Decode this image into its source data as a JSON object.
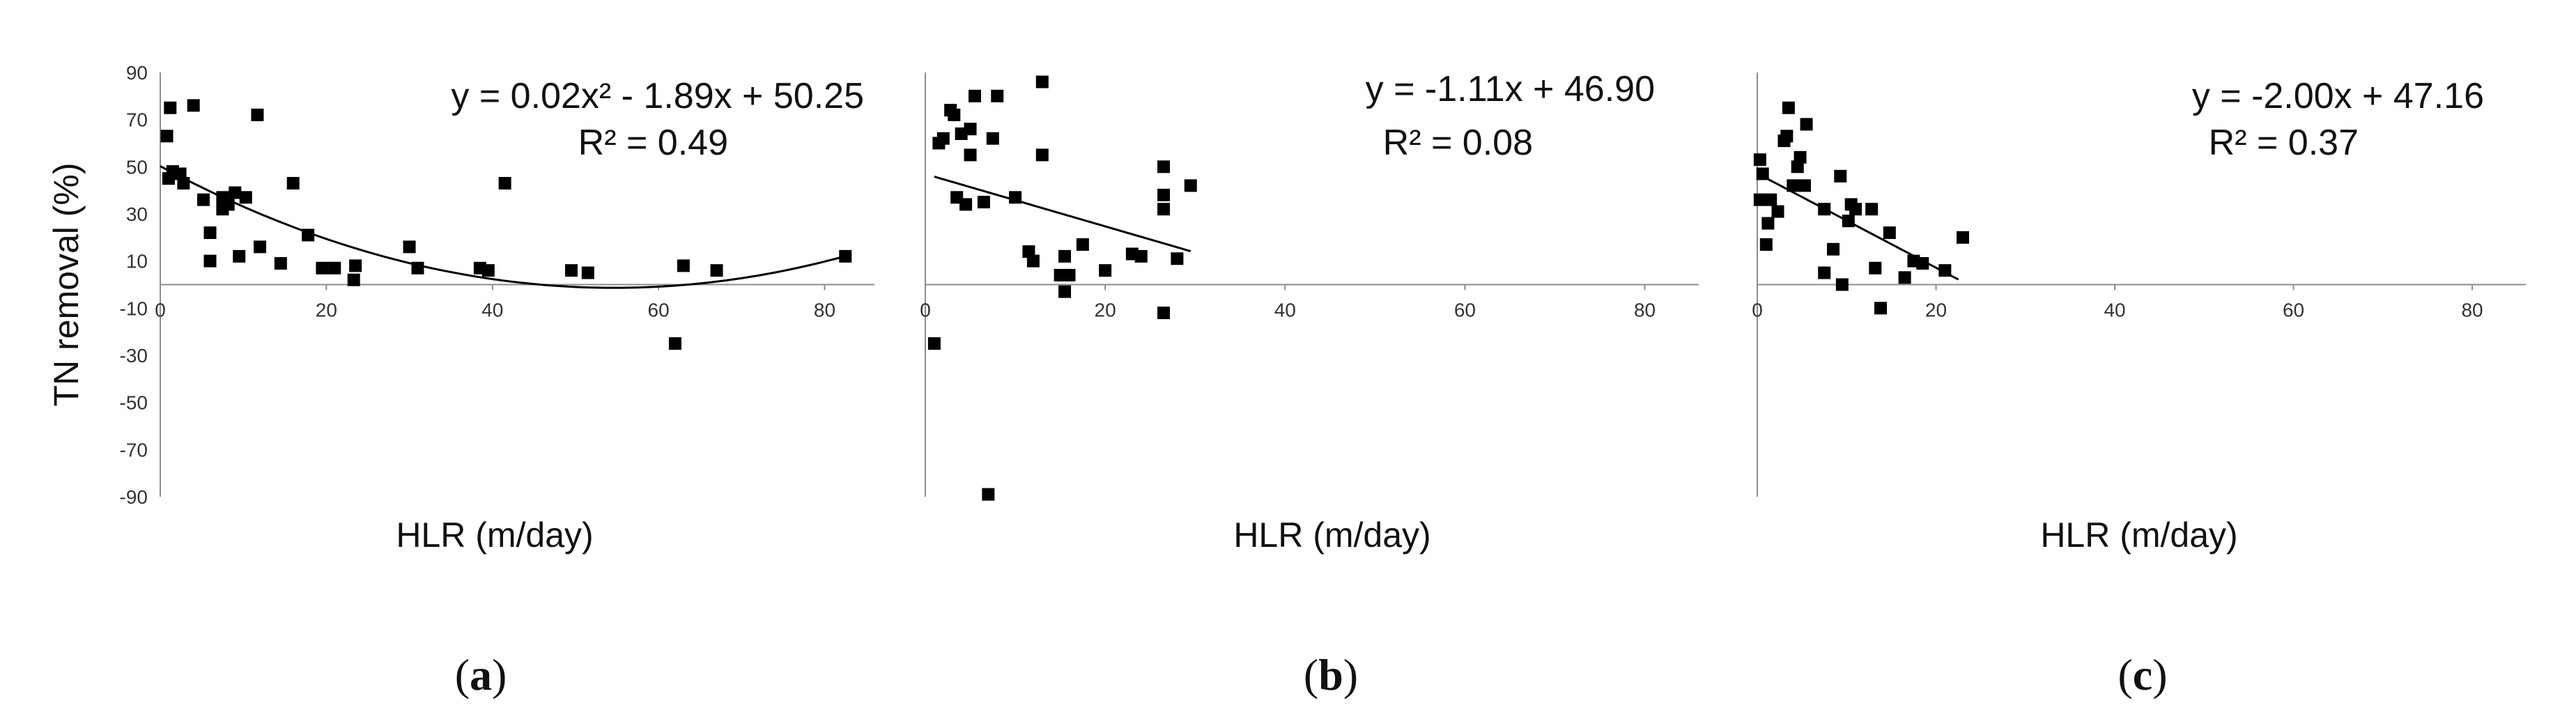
{
  "chart_data": [
    {
      "type": "scatter",
      "panel_label": "a",
      "ylabel": "TN removal (%)",
      "xlabel": "HLR (m/day)",
      "equation": "y = 0.02x² - 1.89x + 50.25",
      "r2_label": "R² = 0.49",
      "fit": {
        "kind": "poly2",
        "coef": [
          0.0173,
          -1.89,
          50.25
        ],
        "x_range": [
          0,
          82.5
        ]
      },
      "xlim": [
        0,
        86
      ],
      "ylim": [
        -90,
        90
      ],
      "xticks": [
        0,
        20,
        40,
        60,
        80
      ],
      "yticks": [
        90,
        70,
        50,
        30,
        10,
        -10,
        -30,
        -50,
        -70,
        -90
      ],
      "points": [
        [
          1.2,
          75
        ],
        [
          0.8,
          63
        ],
        [
          1.5,
          48
        ],
        [
          1,
          45
        ],
        [
          2.4,
          47
        ],
        [
          2.8,
          43
        ],
        [
          4,
          76
        ],
        [
          5.2,
          36
        ],
        [
          6,
          22
        ],
        [
          6,
          10
        ],
        [
          7.5,
          37
        ],
        [
          7.5,
          32
        ],
        [
          8.2,
          34
        ],
        [
          9,
          39
        ],
        [
          9.5,
          12
        ],
        [
          10.3,
          37
        ],
        [
          11.7,
          72
        ],
        [
          12,
          16
        ],
        [
          14.5,
          9
        ],
        [
          16,
          43
        ],
        [
          17.8,
          21
        ],
        [
          19.5,
          7
        ],
        [
          21,
          7
        ],
        [
          23.5,
          8
        ],
        [
          23.3,
          2
        ],
        [
          30,
          16
        ],
        [
          31,
          7
        ],
        [
          38.5,
          7
        ],
        [
          39.5,
          6
        ],
        [
          41.5,
          43
        ],
        [
          49.5,
          6
        ],
        [
          51.5,
          5
        ],
        [
          63,
          8
        ],
        [
          62,
          -25
        ],
        [
          67,
          6
        ],
        [
          82.5,
          12
        ]
      ]
    },
    {
      "type": "scatter",
      "panel_label": "b",
      "xlabel": "HLR (m/day)",
      "equation": "y = -1.11x + 46.90",
      "r2_label": "R² = 0.08",
      "fit": {
        "kind": "linear",
        "coef": [
          -1.11,
          46.9
        ],
        "x_range": [
          1,
          29.5
        ]
      },
      "xlim": [
        0,
        86
      ],
      "ylim": [
        -90,
        90
      ],
      "xticks": [
        0,
        20,
        40,
        60,
        80
      ],
      "points": [
        [
          1,
          -25
        ],
        [
          1.5,
          60
        ],
        [
          2,
          62
        ],
        [
          2.8,
          74
        ],
        [
          3.2,
          72
        ],
        [
          3.5,
          37
        ],
        [
          4,
          64
        ],
        [
          4.5,
          34
        ],
        [
          5,
          55
        ],
        [
          5,
          66
        ],
        [
          5.5,
          80
        ],
        [
          6.5,
          35
        ],
        [
          7,
          -89
        ],
        [
          7.5,
          62
        ],
        [
          8,
          80
        ],
        [
          10,
          37
        ],
        [
          11.5,
          14
        ],
        [
          12,
          10
        ],
        [
          13,
          86
        ],
        [
          13,
          55
        ],
        [
          15,
          4
        ],
        [
          15.5,
          -3
        ],
        [
          15.5,
          12
        ],
        [
          16,
          4
        ],
        [
          17.5,
          17
        ],
        [
          20,
          6
        ],
        [
          23,
          13
        ],
        [
          24,
          12
        ],
        [
          26.5,
          50
        ],
        [
          26.5,
          38
        ],
        [
          26.5,
          32
        ],
        [
          26.5,
          -12
        ],
        [
          28,
          11
        ],
        [
          29.5,
          42
        ]
      ]
    },
    {
      "type": "scatter",
      "panel_label": "c",
      "xlabel": "HLR (m/day)",
      "equation": "y = -2.00x + 47.16",
      "r2_label": "R² = 0.37",
      "fit": {
        "kind": "linear",
        "coef": [
          -2.0,
          47.16
        ],
        "x_range": [
          0,
          22.5
        ]
      },
      "xlim": [
        0,
        86
      ],
      "ylim": [
        -90,
        90
      ],
      "xticks": [
        0,
        20,
        40,
        60,
        80
      ],
      "points": [
        [
          0.3,
          53
        ],
        [
          0.3,
          36
        ],
        [
          0.6,
          47
        ],
        [
          1,
          17
        ],
        [
          1.2,
          26
        ],
        [
          1.5,
          36
        ],
        [
          2.3,
          31
        ],
        [
          3,
          61
        ],
        [
          3.3,
          63
        ],
        [
          3.5,
          75
        ],
        [
          4,
          42
        ],
        [
          4.5,
          50
        ],
        [
          4.8,
          54
        ],
        [
          5.3,
          42
        ],
        [
          5.5,
          68
        ],
        [
          7.5,
          5
        ],
        [
          7.5,
          32
        ],
        [
          8.5,
          15
        ],
        [
          9.3,
          46
        ],
        [
          9.5,
          0
        ],
        [
          10.2,
          27
        ],
        [
          10.5,
          34
        ],
        [
          11,
          32
        ],
        [
          12.8,
          32
        ],
        [
          13.2,
          7
        ],
        [
          13.8,
          -10
        ],
        [
          14.8,
          22
        ],
        [
          16.5,
          3
        ],
        [
          17.5,
          10
        ],
        [
          18.5,
          9
        ],
        [
          21,
          6
        ],
        [
          23,
          20
        ]
      ]
    }
  ]
}
